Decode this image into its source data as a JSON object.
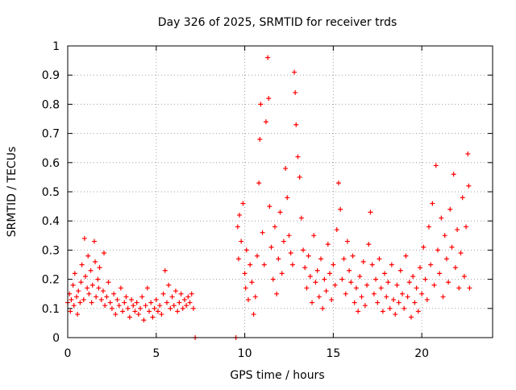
{
  "chart_data": {
    "type": "scatter",
    "title": "Day 326 of 2025, SRMTID for receiver trds",
    "xlabel": "GPS time / hours",
    "ylabel": "SRMTID / TECUs",
    "xlim": [
      0,
      24
    ],
    "ylim": [
      0,
      1
    ],
    "grid": true,
    "x_ticks": [
      {
        "value": 0,
        "label": "0"
      },
      {
        "value": 5,
        "label": "5"
      },
      {
        "value": 10,
        "label": "10"
      },
      {
        "value": 15,
        "label": "15"
      },
      {
        "value": 20,
        "label": "20"
      }
    ],
    "y_ticks": [
      {
        "value": 0,
        "label": "0"
      },
      {
        "value": 0.1,
        "label": "0.1"
      },
      {
        "value": 0.2,
        "label": "0.2"
      },
      {
        "value": 0.3,
        "label": "0.3"
      },
      {
        "value": 0.4,
        "label": "0.4"
      },
      {
        "value": 0.5,
        "label": "0.5"
      },
      {
        "value": 0.6,
        "label": "0.6"
      },
      {
        "value": 0.7,
        "label": "0.7"
      },
      {
        "value": 0.8,
        "label": "0.8"
      },
      {
        "value": 0.9,
        "label": "0.9"
      },
      {
        "value": 1,
        "label": "1"
      }
    ],
    "marker_color": "#ff0000",
    "series": [
      {
        "name": "SRMTID",
        "marker": "plus",
        "points": [
          [
            0.0,
            0.12
          ],
          [
            0.1,
            0.15
          ],
          [
            0.15,
            0.09
          ],
          [
            0.2,
            0.13
          ],
          [
            0.3,
            0.18
          ],
          [
            0.35,
            0.11
          ],
          [
            0.4,
            0.22
          ],
          [
            0.5,
            0.14
          ],
          [
            0.55,
            0.08
          ],
          [
            0.6,
            0.16
          ],
          [
            0.7,
            0.12
          ],
          [
            0.75,
            0.19
          ],
          [
            0.8,
            0.25
          ],
          [
            0.9,
            0.13
          ],
          [
            0.95,
            0.34
          ],
          [
            1.0,
            0.21
          ],
          [
            1.1,
            0.17
          ],
          [
            1.15,
            0.28
          ],
          [
            1.2,
            0.15
          ],
          [
            1.3,
            0.23
          ],
          [
            1.35,
            0.12
          ],
          [
            1.4,
            0.18
          ],
          [
            1.5,
            0.33
          ],
          [
            1.55,
            0.26
          ],
          [
            1.6,
            0.14
          ],
          [
            1.7,
            0.2
          ],
          [
            1.75,
            0.17
          ],
          [
            1.8,
            0.24
          ],
          [
            1.9,
            0.13
          ],
          [
            2.0,
            0.16
          ],
          [
            2.05,
            0.29
          ],
          [
            2.1,
            0.11
          ],
          [
            2.2,
            0.14
          ],
          [
            2.3,
            0.19
          ],
          [
            2.4,
            0.12
          ],
          [
            2.5,
            0.1
          ],
          [
            2.6,
            0.15
          ],
          [
            2.7,
            0.08
          ],
          [
            2.8,
            0.13
          ],
          [
            2.9,
            0.11
          ],
          [
            3.0,
            0.17
          ],
          [
            3.1,
            0.09
          ],
          [
            3.2,
            0.12
          ],
          [
            3.3,
            0.14
          ],
          [
            3.4,
            0.1
          ],
          [
            3.5,
            0.07
          ],
          [
            3.6,
            0.13
          ],
          [
            3.7,
            0.11
          ],
          [
            3.8,
            0.09
          ],
          [
            3.9,
            0.12
          ],
          [
            4.0,
            0.08
          ],
          [
            4.1,
            0.1
          ],
          [
            4.2,
            0.14
          ],
          [
            4.3,
            0.06
          ],
          [
            4.4,
            0.11
          ],
          [
            4.5,
            0.17
          ],
          [
            4.6,
            0.09
          ],
          [
            4.7,
            0.12
          ],
          [
            4.8,
            0.07
          ],
          [
            4.9,
            0.1
          ],
          [
            5.0,
            0.13
          ],
          [
            5.1,
            0.09
          ],
          [
            5.2,
            0.11
          ],
          [
            5.3,
            0.08
          ],
          [
            5.4,
            0.15
          ],
          [
            5.5,
            0.23
          ],
          [
            5.6,
            0.12
          ],
          [
            5.7,
            0.18
          ],
          [
            5.8,
            0.1
          ],
          [
            5.9,
            0.14
          ],
          [
            6.0,
            0.11
          ],
          [
            6.1,
            0.16
          ],
          [
            6.2,
            0.09
          ],
          [
            6.3,
            0.12
          ],
          [
            6.4,
            0.15
          ],
          [
            6.5,
            0.1
          ],
          [
            6.6,
            0.13
          ],
          [
            6.7,
            0.11
          ],
          [
            6.8,
            0.14
          ],
          [
            6.9,
            0.12
          ],
          [
            7.0,
            0.15
          ],
          [
            7.1,
            0.1
          ],
          [
            7.2,
            0.0
          ],
          [
            9.5,
            0.0
          ],
          [
            9.6,
            0.38
          ],
          [
            9.65,
            0.27
          ],
          [
            9.7,
            0.42
          ],
          [
            9.8,
            0.33
          ],
          [
            9.9,
            0.46
          ],
          [
            10.0,
            0.22
          ],
          [
            10.05,
            0.17
          ],
          [
            10.1,
            0.3
          ],
          [
            10.2,
            0.13
          ],
          [
            10.3,
            0.25
          ],
          [
            10.4,
            0.19
          ],
          [
            10.5,
            0.08
          ],
          [
            10.6,
            0.14
          ],
          [
            10.7,
            0.28
          ],
          [
            10.8,
            0.53
          ],
          [
            10.85,
            0.68
          ],
          [
            10.9,
            0.8
          ],
          [
            11.0,
            0.36
          ],
          [
            11.1,
            0.25
          ],
          [
            11.2,
            0.74
          ],
          [
            11.3,
            0.96
          ],
          [
            11.35,
            0.82
          ],
          [
            11.4,
            0.45
          ],
          [
            11.5,
            0.31
          ],
          [
            11.6,
            0.2
          ],
          [
            11.7,
            0.38
          ],
          [
            11.8,
            0.15
          ],
          [
            11.9,
            0.27
          ],
          [
            12.0,
            0.43
          ],
          [
            12.1,
            0.22
          ],
          [
            12.2,
            0.33
          ],
          [
            12.3,
            0.58
          ],
          [
            12.4,
            0.48
          ],
          [
            12.5,
            0.35
          ],
          [
            12.6,
            0.29
          ],
          [
            12.7,
            0.25
          ],
          [
            12.8,
            0.91
          ],
          [
            12.85,
            0.84
          ],
          [
            12.9,
            0.73
          ],
          [
            13.0,
            0.62
          ],
          [
            13.1,
            0.55
          ],
          [
            13.2,
            0.41
          ],
          [
            13.3,
            0.3
          ],
          [
            13.4,
            0.24
          ],
          [
            13.5,
            0.17
          ],
          [
            13.6,
            0.28
          ],
          [
            13.7,
            0.21
          ],
          [
            13.8,
            0.12
          ],
          [
            13.9,
            0.35
          ],
          [
            14.0,
            0.19
          ],
          [
            14.1,
            0.23
          ],
          [
            14.2,
            0.14
          ],
          [
            14.3,
            0.27
          ],
          [
            14.4,
            0.1
          ],
          [
            14.5,
            0.2
          ],
          [
            14.6,
            0.16
          ],
          [
            14.7,
            0.32
          ],
          [
            14.8,
            0.22
          ],
          [
            14.9,
            0.13
          ],
          [
            15.0,
            0.25
          ],
          [
            15.1,
            0.18
          ],
          [
            15.2,
            0.37
          ],
          [
            15.3,
            0.53
          ],
          [
            15.4,
            0.44
          ],
          [
            15.5,
            0.2
          ],
          [
            15.6,
            0.27
          ],
          [
            15.7,
            0.15
          ],
          [
            15.8,
            0.33
          ],
          [
            15.9,
            0.23
          ],
          [
            16.0,
            0.19
          ],
          [
            16.1,
            0.28
          ],
          [
            16.2,
            0.12
          ],
          [
            16.3,
            0.17
          ],
          [
            16.4,
            0.09
          ],
          [
            16.5,
            0.21
          ],
          [
            16.6,
            0.14
          ],
          [
            16.7,
            0.26
          ],
          [
            16.8,
            0.11
          ],
          [
            16.9,
            0.18
          ],
          [
            17.0,
            0.32
          ],
          [
            17.1,
            0.43
          ],
          [
            17.2,
            0.25
          ],
          [
            17.3,
            0.15
          ],
          [
            17.4,
            0.2
          ],
          [
            17.5,
            0.12
          ],
          [
            17.6,
            0.27
          ],
          [
            17.7,
            0.17
          ],
          [
            17.8,
            0.09
          ],
          [
            17.9,
            0.22
          ],
          [
            18.0,
            0.14
          ],
          [
            18.1,
            0.19
          ],
          [
            18.2,
            0.1
          ],
          [
            18.3,
            0.25
          ],
          [
            18.4,
            0.13
          ],
          [
            18.5,
            0.08
          ],
          [
            18.6,
            0.18
          ],
          [
            18.7,
            0.12
          ],
          [
            18.8,
            0.23
          ],
          [
            18.9,
            0.15
          ],
          [
            19.0,
            0.1
          ],
          [
            19.1,
            0.28
          ],
          [
            19.2,
            0.14
          ],
          [
            19.3,
            0.19
          ],
          [
            19.4,
            0.07
          ],
          [
            19.5,
            0.21
          ],
          [
            19.6,
            0.12
          ],
          [
            19.7,
            0.17
          ],
          [
            19.8,
            0.09
          ],
          [
            19.9,
            0.24
          ],
          [
            20.0,
            0.15
          ],
          [
            20.1,
            0.31
          ],
          [
            20.2,
            0.2
          ],
          [
            20.3,
            0.13
          ],
          [
            20.4,
            0.38
          ],
          [
            20.5,
            0.25
          ],
          [
            20.6,
            0.46
          ],
          [
            20.7,
            0.18
          ],
          [
            20.8,
            0.59
          ],
          [
            20.9,
            0.3
          ],
          [
            21.0,
            0.22
          ],
          [
            21.1,
            0.41
          ],
          [
            21.2,
            0.14
          ],
          [
            21.3,
            0.35
          ],
          [
            21.4,
            0.27
          ],
          [
            21.5,
            0.19
          ],
          [
            21.6,
            0.44
          ],
          [
            21.7,
            0.31
          ],
          [
            21.8,
            0.56
          ],
          [
            21.9,
            0.24
          ],
          [
            22.0,
            0.37
          ],
          [
            22.1,
            0.17
          ],
          [
            22.2,
            0.29
          ],
          [
            22.3,
            0.48
          ],
          [
            22.4,
            0.21
          ],
          [
            22.5,
            0.38
          ],
          [
            22.6,
            0.63
          ],
          [
            22.65,
            0.52
          ],
          [
            22.7,
            0.17
          ]
        ]
      }
    ]
  }
}
